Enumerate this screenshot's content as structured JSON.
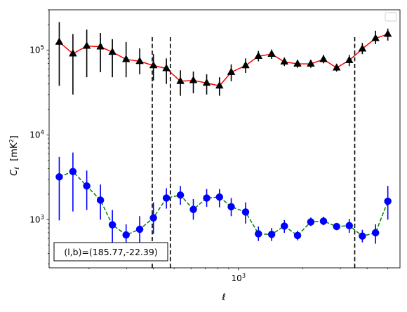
{
  "chart_data": {
    "type": "scatter",
    "xlabel": "ℓ",
    "ylabel_main": "C",
    "ylabel_sub": "ℓ",
    "ylabel_unit": "[mK",
    "ylabel_unit_sup": "2",
    "ylabel_unit_close": "]",
    "x_scale": "log",
    "y_scale": "log",
    "xlim": [
      130,
      5700
    ],
    "ylim": [
      270,
      300000
    ],
    "x_ticks": [
      {
        "value": 1000,
        "base": "10",
        "exp": "3"
      }
    ],
    "y_ticks": [
      {
        "value": 1000,
        "base": "10",
        "exp": "3"
      },
      {
        "value": 10000,
        "base": "10",
        "exp": "4"
      },
      {
        "value": 100000,
        "base": "10",
        "exp": "5"
      }
    ],
    "legend": "top-right",
    "legend_entries": [],
    "annotation": "(l,b)=(185.77,-22.39)",
    "vlines": [
      {
        "x": 395,
        "ymin": 270,
        "ymax": 150000
      },
      {
        "x": 480,
        "ymin": 270,
        "ymax": 150000
      },
      {
        "x": 3500,
        "ymin": 270,
        "ymax": 150000
      }
    ],
    "series": [
      {
        "marker": "triangle",
        "marker_color": "#000000",
        "line_color": "#ff0000",
        "line_style": "solid",
        "x": [
          145,
          168,
          195,
          226,
          257,
          298,
          345,
          400,
          460,
          535,
          615,
          710,
          815,
          925,
          1080,
          1240,
          1430,
          1640,
          1890,
          2180,
          2500,
          2880,
          3300,
          3800,
          4380,
          5000
        ],
        "y": [
          125000,
          91000,
          112000,
          110000,
          95000,
          78000,
          74000,
          66000,
          61000,
          43000,
          44000,
          41000,
          38000,
          55000,
          66000,
          85000,
          90000,
          73000,
          69000,
          69000,
          78000,
          62000,
          76000,
          104000,
          138000,
          155000
        ],
        "err_low": [
          38000,
          30000,
          48000,
          55000,
          48000,
          48000,
          52000,
          44000,
          40000,
          29000,
          31000,
          30000,
          29000,
          43000,
          54000,
          74000,
          79000,
          65000,
          62000,
          62000,
          70000,
          56000,
          65000,
          90000,
          118000,
          130000
        ],
        "err_high": [
          215000,
          155000,
          175000,
          160000,
          135000,
          125000,
          105000,
          90000,
          80000,
          58000,
          56000,
          52000,
          48000,
          68000,
          80000,
          98000,
          102000,
          82000,
          77000,
          77000,
          88000,
          69000,
          88000,
          122000,
          170000,
          180000
        ]
      },
      {
        "marker": "circle",
        "marker_color": "#0000ff",
        "line_color": "#008000",
        "line_style": "dashed",
        "x": [
          145,
          168,
          195,
          226,
          257,
          298,
          345,
          400,
          460,
          535,
          615,
          710,
          815,
          925,
          1080,
          1240,
          1430,
          1640,
          1890,
          2180,
          2500,
          2880,
          3300,
          3800,
          4380,
          5000
        ],
        "y": [
          3200,
          3700,
          2500,
          1700,
          870,
          660,
          770,
          1050,
          1800,
          1950,
          1320,
          1800,
          1850,
          1420,
          1230,
          680,
          670,
          840,
          650,
          940,
          960,
          830,
          850,
          640,
          700,
          1650
        ],
        "err_low": [
          980,
          1250,
          1300,
          1000,
          520,
          420,
          450,
          680,
          1350,
          1500,
          1000,
          1420,
          1400,
          1100,
          900,
          560,
          560,
          700,
          570,
          840,
          860,
          760,
          700,
          540,
          520,
          1000
        ],
        "err_high": [
          5500,
          6200,
          3800,
          2600,
          1300,
          880,
          1100,
          1600,
          2350,
          2500,
          1750,
          2300,
          2300,
          1800,
          1600,
          830,
          800,
          990,
          740,
          1060,
          1080,
          900,
          1020,
          760,
          880,
          2500
        ]
      }
    ]
  }
}
